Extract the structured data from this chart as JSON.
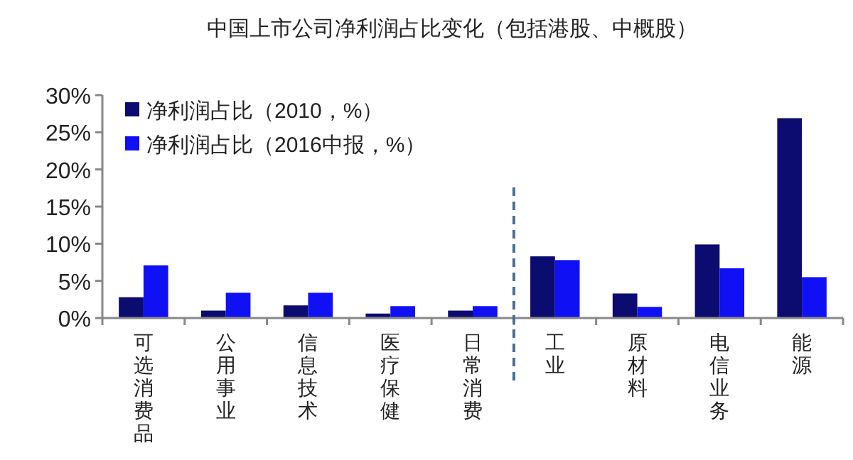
{
  "chart_data": {
    "type": "bar",
    "title": "中国上市公司净利润占比变化（包括港股、中概股）",
    "categories": [
      "可选消费品",
      "公用事业",
      "信息技术",
      "医疗保健",
      "日常消费",
      "工业",
      "原材料",
      "电信业务",
      "能源"
    ],
    "series": [
      {
        "name": "净利润占比（2010，%）",
        "color": "#0b0b70",
        "values": [
          2.8,
          1.0,
          1.7,
          0.6,
          1.0,
          8.3,
          3.3,
          9.9,
          26.9
        ]
      },
      {
        "name": "净利润占比（2016中报，%）",
        "color": "#1010f5",
        "values": [
          7.1,
          3.4,
          3.4,
          1.6,
          1.6,
          7.8,
          1.5,
          6.7,
          5.5
        ]
      }
    ],
    "ylim": [
      0,
      30
    ],
    "yticks": [
      {
        "value": 0,
        "label": "0%"
      },
      {
        "value": 5,
        "label": "5%"
      },
      {
        "value": 10,
        "label": "10%"
      },
      {
        "value": 15,
        "label": "15%"
      },
      {
        "value": 20,
        "label": "20%"
      },
      {
        "value": 25,
        "label": "25%"
      },
      {
        "value": 30,
        "label": "30%"
      }
    ],
    "legend": "top left",
    "grid": false
  }
}
